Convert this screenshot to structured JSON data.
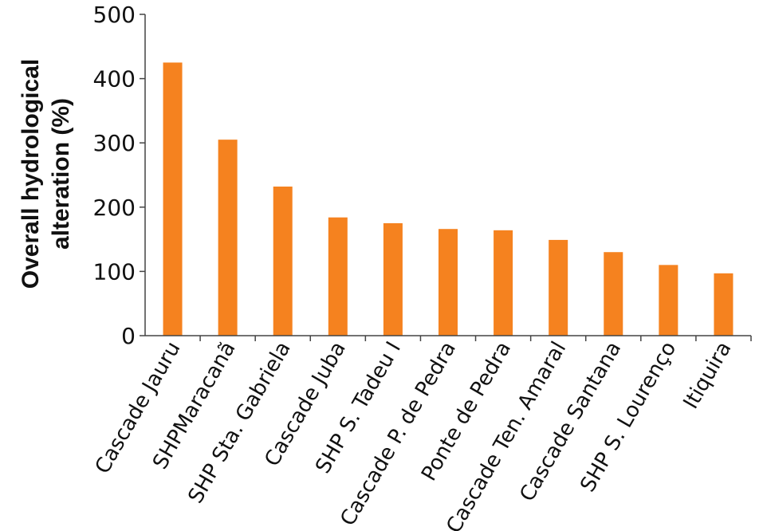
{
  "chart_data": {
    "type": "bar",
    "title": "",
    "xlabel": "",
    "ylabel_lines": [
      "Overall hydrological",
      "alteration (%)"
    ],
    "ylim": [
      0,
      500
    ],
    "yticks": [
      0,
      100,
      200,
      300,
      400,
      500
    ],
    "categories": [
      "Cascade Jauru",
      "SHPMaracanã",
      "SHP Sta. Gabriela",
      "Cascade Juba",
      "SHP S. Tadeu I",
      "Cascade P. de Pedra",
      "Ponte de Pedra",
      "Cascade Ten. Amaral",
      "Cascade Santana",
      "SHP S. Lourenço",
      "Itiquira"
    ],
    "values": [
      425,
      305,
      232,
      184,
      175,
      166,
      164,
      149,
      130,
      110,
      97
    ],
    "bar_color": "#F5821F",
    "grid": false,
    "legend": "none"
  }
}
